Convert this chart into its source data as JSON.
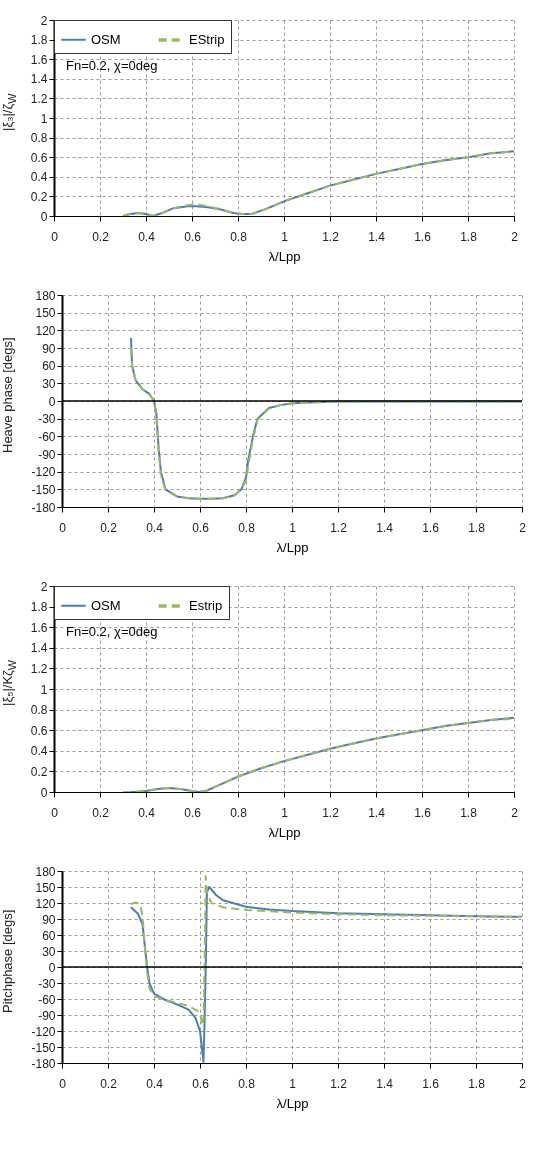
{
  "chart_data": [
    {
      "type": "line",
      "xlabel": "λ/Lpp",
      "ylabel": "|ξ₃|/ζ$_{W}$",
      "annotations": [
        "Fn=0.2, χ=0deg"
      ],
      "legend": "top left",
      "grid": true,
      "xlim": [
        0,
        2
      ],
      "xticks": [
        0,
        0.2,
        0.4,
        0.6,
        0.8,
        1,
        1.2,
        1.4,
        1.6,
        1.8,
        2
      ],
      "ylim": [
        0,
        2
      ],
      "yticks": [
        0,
        0.2,
        0.4,
        0.6,
        0.8,
        1,
        1.2,
        1.4,
        1.6,
        1.8,
        2
      ],
      "series": [
        {
          "name": "OSM",
          "color": "#4a7ebb",
          "line_style": "solid",
          "x": [
            0.3,
            0.33,
            0.37,
            0.4,
            0.43,
            0.47,
            0.52,
            0.58,
            0.62,
            0.67,
            0.72,
            0.78,
            0.82,
            0.86,
            0.92,
            1.0,
            1.1,
            1.2,
            1.3,
            1.4,
            1.5,
            1.6,
            1.7,
            1.8,
            1.9,
            2.0
          ],
          "values": [
            0,
            0.02,
            0.03,
            0.02,
            0,
            0.03,
            0.08,
            0.1,
            0.1,
            0.09,
            0.07,
            0.03,
            0.02,
            0.02,
            0.07,
            0.15,
            0.23,
            0.31,
            0.37,
            0.43,
            0.48,
            0.53,
            0.57,
            0.6,
            0.64,
            0.66
          ]
        },
        {
          "name": "EStrip",
          "color": "#9bbb59",
          "line_style": "dashed",
          "x": [
            0.3,
            0.33,
            0.37,
            0.4,
            0.43,
            0.47,
            0.52,
            0.58,
            0.62,
            0.67,
            0.72,
            0.78,
            0.82,
            0.86,
            0.92,
            1.0,
            1.1,
            1.2,
            1.3,
            1.4,
            1.5,
            1.6,
            1.7,
            1.8,
            1.9,
            2.0
          ],
          "values": [
            0,
            0.02,
            0.03,
            0.02,
            0,
            0.03,
            0.08,
            0.11,
            0.12,
            0.1,
            0.07,
            0.03,
            0.02,
            0.02,
            0.07,
            0.15,
            0.23,
            0.31,
            0.37,
            0.43,
            0.48,
            0.53,
            0.57,
            0.6,
            0.64,
            0.66
          ]
        }
      ]
    },
    {
      "type": "line",
      "xlabel": "λ/Lpp",
      "ylabel": "Heave phase [degs]",
      "grid": true,
      "xlim": [
        0,
        2
      ],
      "xticks": [
        0,
        0.2,
        0.4,
        0.6,
        0.8,
        1,
        1.2,
        1.4,
        1.6,
        1.8,
        2
      ],
      "ylim": [
        -180,
        180
      ],
      "yticks": [
        -180,
        -150,
        -120,
        -90,
        -60,
        -30,
        0,
        30,
        60,
        90,
        120,
        150,
        180
      ],
      "ref_lines": [
        {
          "axis": "y",
          "value": 0,
          "color": "#000000"
        }
      ],
      "series": [
        {
          "color": "#4a7ebb",
          "line_style": "solid",
          "x": [
            0.3,
            0.305,
            0.32,
            0.35,
            0.38,
            0.4,
            0.41,
            0.42,
            0.43,
            0.45,
            0.5,
            0.55,
            0.6,
            0.65,
            0.7,
            0.75,
            0.78,
            0.8,
            0.81,
            0.83,
            0.85,
            0.9,
            0.95,
            1.0,
            1.1,
            1.2,
            1.4,
            1.6,
            1.8,
            2.0
          ],
          "values": [
            107,
            60,
            35,
            20,
            12,
            0,
            -20,
            -80,
            -120,
            -150,
            -162,
            -165,
            -166,
            -166,
            -165,
            -160,
            -150,
            -130,
            -100,
            -60,
            -30,
            -12,
            -7,
            -4,
            -2,
            -1,
            -1,
            -1,
            -1,
            -1
          ]
        },
        {
          "color": "#9bbb59",
          "line_style": "dashed",
          "x": [
            0.3,
            0.305,
            0.32,
            0.35,
            0.38,
            0.4,
            0.41,
            0.42,
            0.43,
            0.45,
            0.5,
            0.55,
            0.6,
            0.65,
            0.7,
            0.75,
            0.78,
            0.8,
            0.81,
            0.83,
            0.85,
            0.9,
            0.95,
            1.0,
            1.1,
            1.2,
            1.4,
            1.6,
            1.8,
            2.0
          ],
          "values": [
            90,
            60,
            35,
            20,
            12,
            0,
            -25,
            -85,
            -125,
            -152,
            -162,
            -165,
            -166,
            -166,
            -165,
            -160,
            -150,
            -135,
            -110,
            -65,
            -32,
            -13,
            -7,
            -4,
            -2,
            -1,
            -1,
            -1,
            -1,
            -1
          ]
        }
      ]
    },
    {
      "type": "line",
      "xlabel": "λ/Lpp",
      "ylabel": "|ξ₅|/Kζ$_{W}$",
      "annotations": [
        "Fn=0.2, χ=0deg"
      ],
      "legend": "top left",
      "grid": true,
      "xlim": [
        0,
        2
      ],
      "xticks": [
        0,
        0.2,
        0.4,
        0.6,
        0.8,
        1,
        1.2,
        1.4,
        1.6,
        1.8,
        2
      ],
      "ylim": [
        0,
        2
      ],
      "yticks": [
        0,
        0.2,
        0.4,
        0.6,
        0.8,
        1,
        1.2,
        1.4,
        1.6,
        1.8,
        2
      ],
      "series": [
        {
          "name": "OSM",
          "color": "#4a7ebb",
          "line_style": "solid",
          "x": [
            0.3,
            0.35,
            0.4,
            0.45,
            0.5,
            0.55,
            0.6,
            0.63,
            0.66,
            0.7,
            0.8,
            0.9,
            1.0,
            1.1,
            1.2,
            1.3,
            1.4,
            1.5,
            1.6,
            1.7,
            1.8,
            1.9,
            2.0
          ],
          "values": [
            0,
            0,
            0.01,
            0.03,
            0.04,
            0.03,
            0.01,
            0,
            0.01,
            0.05,
            0.15,
            0.23,
            0.3,
            0.36,
            0.42,
            0.47,
            0.52,
            0.56,
            0.6,
            0.64,
            0.67,
            0.7,
            0.72
          ]
        },
        {
          "name": "Estrip",
          "color": "#9bbb59",
          "line_style": "dashed",
          "x": [
            0.3,
            0.35,
            0.4,
            0.45,
            0.5,
            0.55,
            0.6,
            0.63,
            0.66,
            0.7,
            0.8,
            0.9,
            1.0,
            1.1,
            1.2,
            1.3,
            1.4,
            1.5,
            1.6,
            1.7,
            1.8,
            1.9,
            2.0
          ],
          "values": [
            0,
            0,
            0.01,
            0.03,
            0.04,
            0.03,
            0.01,
            0,
            0.01,
            0.05,
            0.15,
            0.23,
            0.3,
            0.36,
            0.42,
            0.47,
            0.52,
            0.56,
            0.6,
            0.64,
            0.67,
            0.7,
            0.71
          ]
        }
      ]
    },
    {
      "type": "line",
      "xlabel": "λ/Lpp",
      "ylabel": "Pitchphase [degs]",
      "grid": true,
      "xlim": [
        0,
        2
      ],
      "xticks": [
        0,
        0.2,
        0.4,
        0.6,
        0.8,
        1,
        1.2,
        1.4,
        1.6,
        1.8,
        2
      ],
      "ylim": [
        -180,
        180
      ],
      "yticks": [
        -180,
        -150,
        -120,
        -90,
        -60,
        -30,
        0,
        30,
        60,
        90,
        120,
        150,
        180
      ],
      "ref_lines": [
        {
          "axis": "y",
          "value": 0,
          "color": "#000000"
        }
      ],
      "series": [
        {
          "color": "#4a7ebb",
          "line_style": "solid",
          "x": [
            0.3,
            0.33,
            0.35,
            0.36,
            0.37,
            0.38,
            0.4,
            0.45,
            0.5,
            0.55,
            0.58,
            0.6,
            0.615,
            0.62,
            0.625,
            0.63,
            0.64,
            0.67,
            0.7,
            0.8,
            0.9,
            1.0,
            1.2,
            1.4,
            1.6,
            1.8,
            2.0
          ],
          "values": [
            112,
            100,
            80,
            40,
            0,
            -30,
            -50,
            -62,
            -70,
            -80,
            -95,
            -120,
            -178,
            -100,
            0,
            140,
            150,
            135,
            125,
            113,
            108,
            105,
            101,
            99,
            97,
            95,
            94
          ]
        },
        {
          "color": "#9bbb59",
          "line_style": "dashed",
          "x": [
            0.3,
            0.32,
            0.34,
            0.35,
            0.36,
            0.37,
            0.38,
            0.4,
            0.45,
            0.5,
            0.55,
            0.6,
            0.61,
            0.615,
            0.62,
            0.625,
            0.63,
            0.65,
            0.7,
            0.8,
            1.0,
            1.2,
            1.4,
            1.6,
            1.8,
            2.0
          ],
          "values": [
            118,
            121,
            118,
            95,
            40,
            -10,
            -40,
            -55,
            -62,
            -67,
            -73,
            -85,
            -110,
            -95,
            0,
            170,
            140,
            120,
            112,
            107,
            102,
            99,
            97,
            96,
            95,
            94
          ]
        }
      ]
    }
  ]
}
